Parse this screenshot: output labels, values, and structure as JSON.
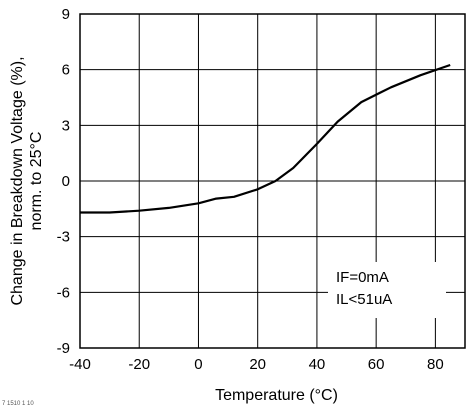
{
  "chart_data": {
    "type": "line",
    "xlabel": "Temperature (°C)",
    "ylabel_line1": "Change in Breakdown Voltage (%),",
    "ylabel_line2": "norm. to 25°C",
    "xlim": [
      -40,
      90
    ],
    "ylim": [
      -9,
      9
    ],
    "xticks": [
      -40,
      -20,
      0,
      20,
      40,
      60,
      80
    ],
    "yticks": [
      -9,
      -6,
      -3,
      0,
      3,
      6,
      9
    ],
    "grid": true,
    "annotations": [
      "IF=0mA",
      "IL<51uA"
    ],
    "footnote": "7 1510 1 10",
    "series": [
      {
        "x": [
          -40,
          -30,
          -20,
          -10,
          0,
          6,
          12,
          20,
          26,
          32,
          40,
          47,
          55,
          65,
          75,
          85
        ],
        "y": [
          -1.7,
          -1.7,
          -1.6,
          -1.45,
          -1.2,
          -0.95,
          -0.85,
          -0.45,
          0.0,
          0.7,
          2.0,
          3.2,
          4.25,
          5.05,
          5.7,
          6.25
        ]
      }
    ]
  }
}
